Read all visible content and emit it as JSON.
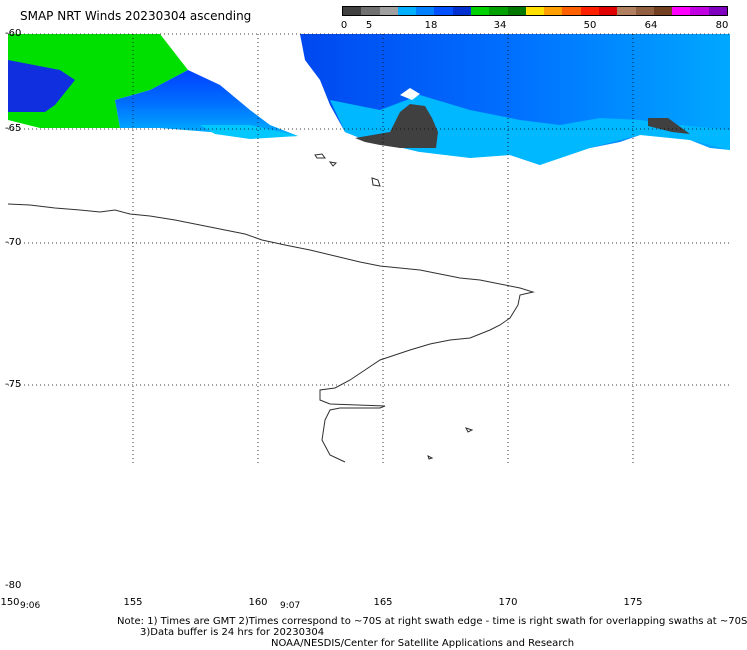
{
  "title": "SMAP NRT Winds 20230304 ascending",
  "colorbar": {
    "colors": [
      "#404040",
      "#707070",
      "#a0a0a0",
      "#00b0ff",
      "#0080ff",
      "#0050ff",
      "#0030d0",
      "#00d000",
      "#00a000",
      "#007800",
      "#ffe000",
      "#ffa000",
      "#ff6000",
      "#ff2000",
      "#e00000",
      "#b08060",
      "#906040",
      "#704020",
      "#ff00ff",
      "#c000e0",
      "#8000c0"
    ],
    "labels": [
      "0",
      "5",
      "18",
      "34",
      "50",
      "64",
      "80"
    ]
  },
  "axes": {
    "lat_labels": [
      "-60",
      "-65",
      "-70",
      "-75",
      "-80"
    ],
    "lon_labels": [
      "150",
      "155",
      "160",
      "165",
      "170",
      "175"
    ]
  },
  "times": {
    "t1": "9:06",
    "t2": "9:07"
  },
  "notes": {
    "line1": "Note: 1) Times are GMT 2)Times correspond to ~70S at right swath edge - time is right swath for overlapping swaths at ~70S",
    "line2": "3)Data buffer is 24 hrs for 20230304",
    "line3": "NOAA/NESDIS/Center for Satellite Applications and Research"
  }
}
